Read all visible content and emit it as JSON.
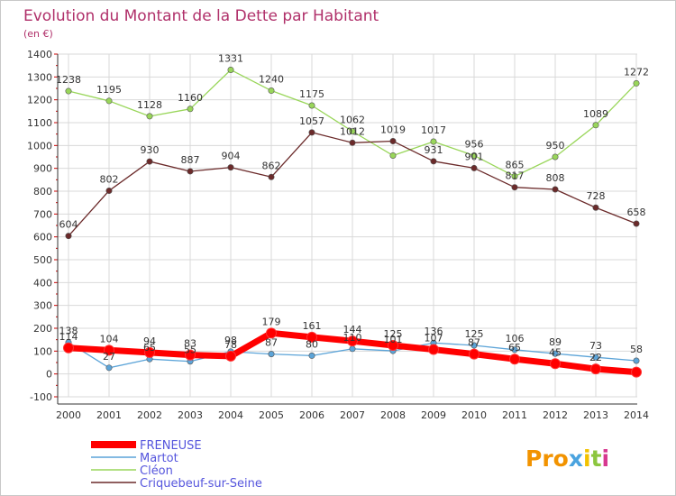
{
  "chart_data": {
    "type": "line",
    "title": "Evolution du Montant de la Dette par Habitant",
    "subtitle": "(en €)",
    "xlabel": "",
    "ylabel": "",
    "categories": [
      "2000",
      "2001",
      "2002",
      "2003",
      "2004",
      "2005",
      "2006",
      "2007",
      "2008",
      "2009",
      "2010",
      "2011",
      "2012",
      "2013",
      "2014"
    ],
    "ylim": [
      -100,
      1400
    ],
    "yticks": [
      -100,
      0,
      100,
      200,
      300,
      400,
      500,
      600,
      700,
      800,
      900,
      1000,
      1100,
      1200,
      1300,
      1400
    ],
    "grid": true,
    "legend_position": "bottom-left",
    "series": [
      {
        "name": "FRENEUSE",
        "color": "#ff0000",
        "labels_shown": true,
        "values": [
          114,
          104,
          94,
          83,
          78,
          179,
          161,
          144,
          125,
          107,
          87,
          65,
          45,
          22,
          8
        ],
        "labels": [
          "114",
          "104",
          "94",
          "83",
          "78",
          "179",
          "161",
          "144",
          "125",
          "107",
          "87",
          "65",
          "45",
          "22",
          ""
        ]
      },
      {
        "name": "Martot",
        "color": "#5ca4d8",
        "labels_shown": true,
        "values": [
          138,
          27,
          65,
          55,
          98,
          87,
          80,
          110,
          101,
          136,
          125,
          106,
          89,
          73,
          58
        ],
        "labels": [
          "138",
          "27",
          "65",
          "55",
          "98",
          "87",
          "80",
          "110",
          "101",
          "136",
          "125",
          "106",
          "89",
          "73",
          "58"
        ]
      },
      {
        "name": "Cléon",
        "color": "#99d65a",
        "labels_shown": true,
        "values": [
          1238,
          1195,
          1128,
          1160,
          1331,
          1240,
          1175,
          1062,
          956,
          1017,
          956,
          865,
          950,
          1089,
          1272
        ],
        "labels": [
          "1238",
          "1195",
          "1128",
          "1160",
          "1331",
          "1240",
          "1175",
          "1062",
          "",
          "1017",
          "956",
          "865",
          "950",
          "1089",
          "1272"
        ]
      },
      {
        "name": "Criquebeuf-sur-Seine",
        "color": "#6b2a2a",
        "labels_shown": true,
        "values": [
          604,
          802,
          930,
          887,
          904,
          862,
          1057,
          1012,
          1019,
          931,
          901,
          817,
          808,
          728,
          658
        ],
        "labels": [
          "604",
          "802",
          "930",
          "887",
          "904",
          "862",
          "1057",
          "1012",
          "1019",
          "931",
          "901",
          "817",
          "808",
          "728",
          "658"
        ]
      }
    ]
  },
  "logo": {
    "text": "Proxiti"
  }
}
